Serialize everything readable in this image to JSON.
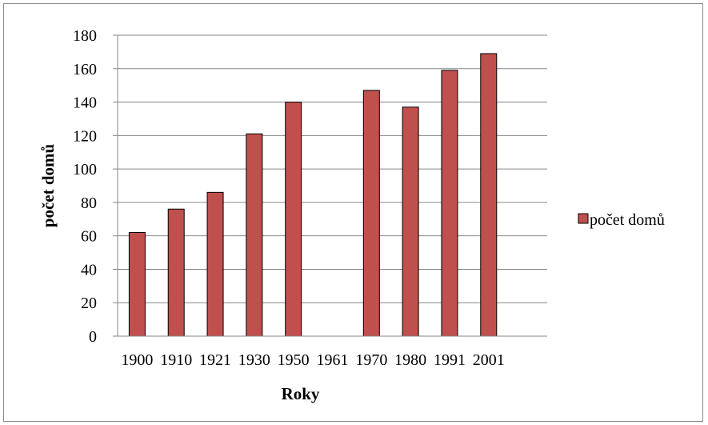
{
  "chart_data": {
    "type": "bar",
    "categories": [
      "1900",
      "1910",
      "1921",
      "1930",
      "1950",
      "1961",
      "1970",
      "1980",
      "1991",
      "2001"
    ],
    "series": [
      {
        "name": "počet domů",
        "values": [
          62,
          76,
          86,
          121,
          140,
          null,
          147,
          137,
          159,
          169
        ],
        "color": "#c0504d"
      }
    ],
    "title": "",
    "xlabel": "Roky",
    "ylabel": "počet domů",
    "ylim": [
      0,
      180
    ],
    "yticks": [
      "0",
      "20",
      "40",
      "60",
      "80",
      "100",
      "120",
      "140",
      "160",
      "180"
    ],
    "grid": true,
    "legend": "right"
  }
}
